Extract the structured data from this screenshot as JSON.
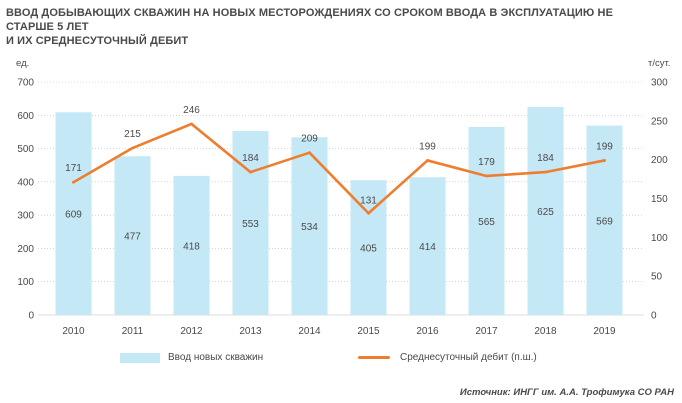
{
  "title_line1": "ВВОД ДОБЫВАЮЩИХ СКВАЖИН НА НОВЫХ МЕСТОРОЖДЕНИЯХ СО СРОКОМ ВВОДА В ЭКСПЛУАТАЦИЮ НЕ СТАРШЕ 5 ЛЕТ",
  "title_line2": "И ИХ СРЕДНЕСУТОЧНЫЙ ДЕБИТ",
  "source": "Источник: ИНГГ им. А.А. Трофимука СО РАН",
  "colors": {
    "bar": "#c5e8f7",
    "line": "#ee7d2e",
    "grid": "#bdbdbd",
    "text": "#4a4a4a"
  },
  "chart_data": {
    "type": "bar",
    "categories": [
      "2010",
      "2011",
      "2012",
      "2013",
      "2014",
      "2015",
      "2016",
      "2017",
      "2018",
      "2019"
    ],
    "series": [
      {
        "name": "Ввод новых скважин",
        "type": "bar",
        "axis": "left",
        "values": [
          609,
          477,
          418,
          553,
          534,
          405,
          414,
          565,
          625,
          569
        ]
      },
      {
        "name": "Среднесуточный дебит (п.ш.)",
        "type": "line",
        "axis": "right",
        "values": [
          171,
          215,
          246,
          184,
          209,
          131,
          199,
          179,
          184,
          199
        ]
      }
    ],
    "y_left": {
      "unit": "ед.",
      "min": 0,
      "max": 700,
      "ticks": [
        "0",
        "100",
        "200",
        "300",
        "400",
        "500",
        "600",
        "700"
      ]
    },
    "y_right": {
      "unit": "т/сут.",
      "min": 0,
      "max": 300,
      "ticks": [
        "0",
        "50",
        "100",
        "150",
        "200",
        "250",
        "300"
      ]
    },
    "grid": true,
    "legend": "bottom"
  }
}
